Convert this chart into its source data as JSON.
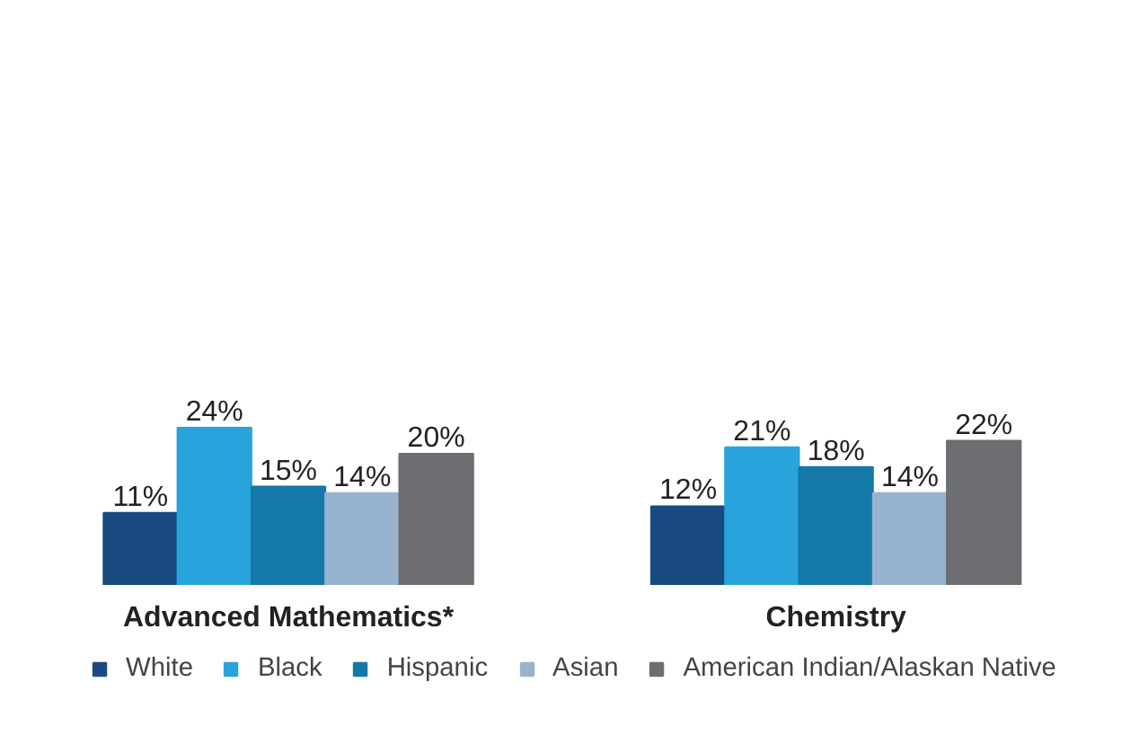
{
  "chart_data": {
    "type": "bar",
    "categories": [
      "Advanced Mathematics*",
      "Chemistry"
    ],
    "tick_labels": "x",
    "grid": false,
    "legend": "bottom",
    "series": [
      {
        "name": "White",
        "color": "#1a4a82",
        "values": [
          11,
          12
        ],
        "value_labels": [
          "11%",
          "12%"
        ]
      },
      {
        "name": "Black",
        "color": "#29a3dc",
        "values": [
          24,
          21
        ],
        "value_labels": [
          "24%",
          "21%"
        ]
      },
      {
        "name": "Hispanic",
        "color": "#1478a8",
        "values": [
          15,
          18
        ],
        "value_labels": [
          "15%",
          "18%"
        ]
      },
      {
        "name": "Asian",
        "color": "#97b3d0",
        "values": [
          14,
          14
        ],
        "value_labels": [
          "14%",
          "14%"
        ]
      },
      {
        "name": "American Indian/Alaskan Native",
        "color": "#6d6e71",
        "values": [
          20,
          22
        ],
        "value_labels": [
          "20%",
          "22%"
        ]
      }
    ]
  }
}
